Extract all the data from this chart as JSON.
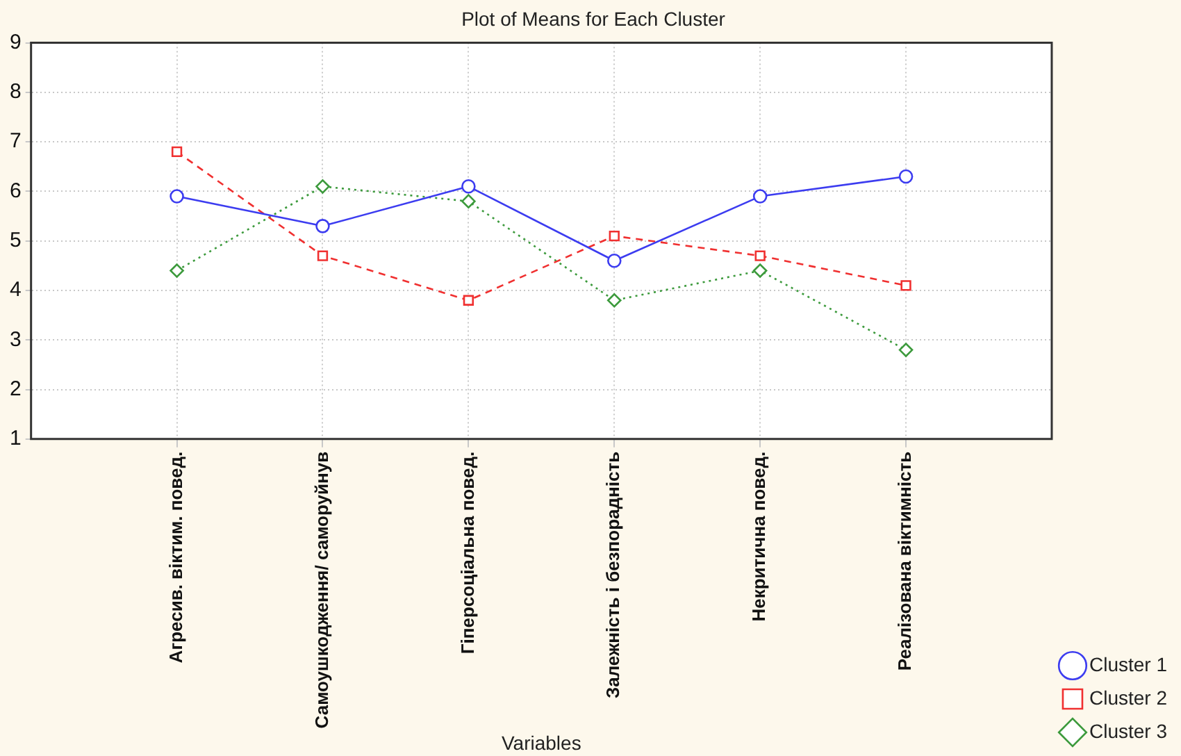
{
  "chart_data": {
    "type": "line",
    "title": "Plot of Means for Each Cluster",
    "xlabel": "Variables",
    "categories": [
      "Агресив. віктим. повед.",
      "Самоушкодження/ саморуйнув",
      "Гіперсоціальна повед.",
      "Залежність і безпорадність",
      "Некритична повед.",
      "Реалізована віктимність"
    ],
    "series": [
      {
        "name": "Cluster 1",
        "color": "#3c3cf0",
        "marker": "circle",
        "line_style": "solid",
        "values": [
          5.9,
          5.3,
          6.1,
          4.6,
          5.9,
          6.3
        ]
      },
      {
        "name": "Cluster 2",
        "color": "#f03030",
        "marker": "square",
        "line_style": "dashed",
        "values": [
          6.8,
          4.7,
          3.8,
          5.1,
          4.7,
          4.1
        ]
      },
      {
        "name": "Cluster 3",
        "color": "#3c9a3c",
        "marker": "diamond",
        "line_style": "dotted",
        "values": [
          4.4,
          6.1,
          5.8,
          3.8,
          4.4,
          2.8
        ]
      }
    ],
    "ylim": [
      1,
      9
    ],
    "yticks": [
      1,
      2,
      3,
      4,
      5,
      6,
      7,
      8,
      9
    ],
    "grid": true,
    "legend": "bottom right"
  }
}
